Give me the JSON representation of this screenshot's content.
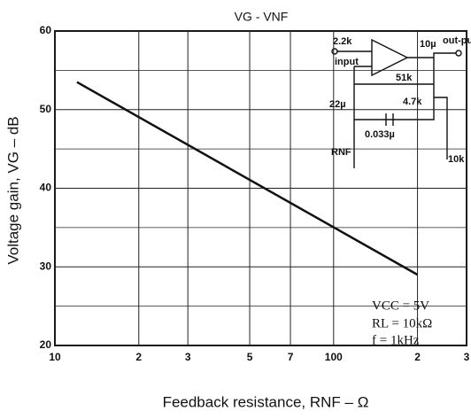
{
  "chart_data": {
    "type": "line",
    "title": "VG - VNF",
    "x_label": "Feedback resistance, RNF – Ω",
    "y_label": "Voltage gain, VG – dB",
    "x": [
      12,
      200
    ],
    "series": [
      {
        "color": "#111111",
        "values": [
          53.5,
          29
        ]
      }
    ],
    "xlim": [
      10,
      300
    ],
    "ylim": [
      20,
      60
    ],
    "xlog": true,
    "grid": true,
    "xticks": [
      10,
      {
        "value": 20,
        "label": "2"
      },
      {
        "value": 30,
        "label": "3"
      },
      {
        "value": 50,
        "label": "5"
      },
      {
        "value": 70,
        "label": "7"
      },
      100,
      {
        "value": 200,
        "label": "2"
      },
      {
        "value": 300,
        "label": "3"
      }
    ],
    "yticks": [
      20,
      30,
      40,
      50,
      60
    ],
    "yminor": [
      25,
      35,
      45,
      55
    ],
    "annotations": [
      "VCC = 5V",
      "RL = 10kΩ",
      "f = 1kHz"
    ],
    "circuit_labels": [
      "2.2k",
      "input",
      "10µ",
      "out-put",
      "51k",
      "22µ",
      "4.7k",
      "0.033µ",
      "RNF",
      "10k"
    ]
  }
}
